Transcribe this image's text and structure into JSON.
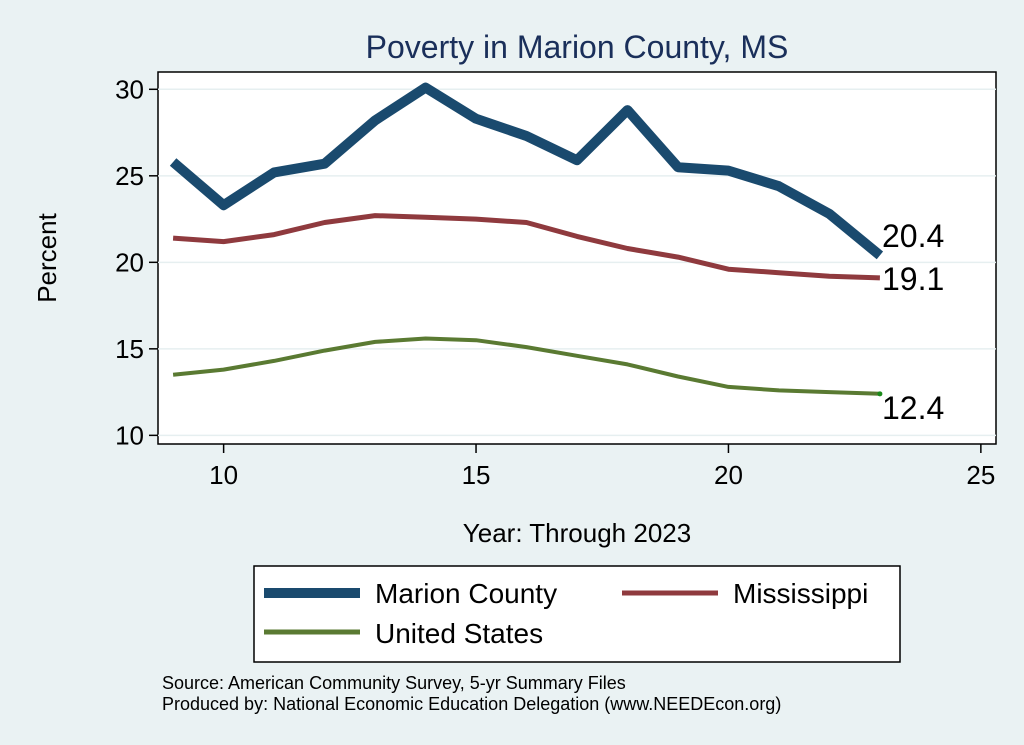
{
  "chart_data": {
    "type": "line",
    "title": "Poverty in Marion County, MS",
    "xlabel": "Year: Through 2023",
    "ylabel": "Percent",
    "xlim": [
      8.7,
      25.3
    ],
    "ylim": [
      9.5,
      31.0
    ],
    "xticks": [
      "10",
      "15",
      "20",
      "25"
    ],
    "yticks": [
      "10",
      "15",
      "20",
      "25",
      "30"
    ],
    "grid": true,
    "legend_position": "bottom",
    "series": [
      {
        "name": "Marion County",
        "color": "#1a4a6e",
        "x": [
          9,
          10,
          11,
          12,
          13,
          14,
          15,
          16,
          17,
          18,
          19,
          20,
          21,
          22,
          23
        ],
        "values": [
          25.8,
          23.3,
          25.2,
          25.7,
          28.2,
          30.1,
          28.3,
          27.3,
          25.9,
          28.8,
          25.5,
          25.3,
          24.4,
          22.8,
          20.4
        ],
        "end_label": "20.4"
      },
      {
        "name": "Mississippi",
        "color": "#8f3a3e",
        "x": [
          9,
          10,
          11,
          12,
          13,
          14,
          15,
          16,
          17,
          18,
          19,
          20,
          21,
          22,
          23
        ],
        "values": [
          21.4,
          21.2,
          21.6,
          22.3,
          22.7,
          22.6,
          22.5,
          22.3,
          21.5,
          20.8,
          20.3,
          19.6,
          19.4,
          19.2,
          19.1
        ],
        "end_label": "19.1"
      },
      {
        "name": "United States",
        "color": "#5a7a32",
        "x": [
          9,
          10,
          11,
          12,
          13,
          14,
          15,
          16,
          17,
          18,
          19,
          20,
          21,
          22,
          23
        ],
        "values": [
          13.5,
          13.8,
          14.3,
          14.9,
          15.4,
          15.6,
          15.5,
          15.1,
          14.6,
          14.1,
          13.4,
          12.8,
          12.6,
          12.5,
          12.4
        ],
        "end_label": "12.4"
      }
    ],
    "notes": [
      "Source: American Community Survey, 5-yr Summary Files",
      "Produced by: National Economic Education Delegation (www.NEEDEcon.org)"
    ]
  }
}
